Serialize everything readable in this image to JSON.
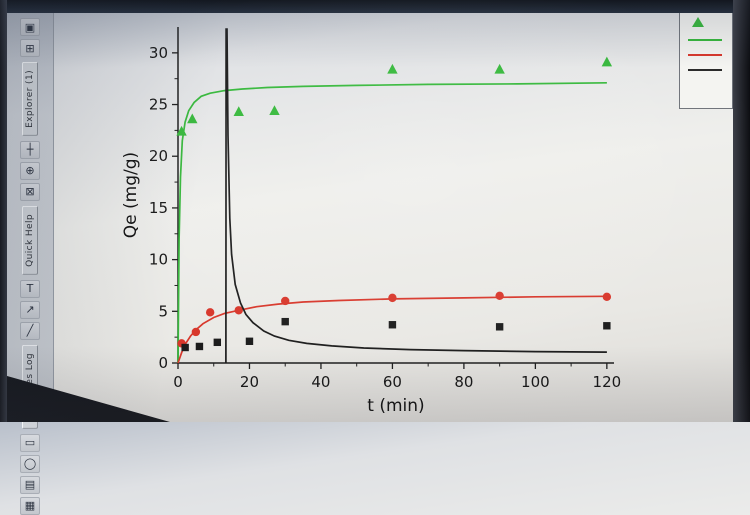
{
  "window": {
    "top_bar_color": "#141a24",
    "bezel_color": "#1b1d22"
  },
  "sidebar": {
    "tabs": [
      "Explorer (1)",
      "Quick Help",
      "Messages Log"
    ],
    "icon_groups": [
      [
        {
          "name": "project-explorer-icon",
          "glyph": "▣"
        },
        {
          "name": "new-window-icon",
          "glyph": "⊞"
        }
      ],
      [
        {
          "name": "crosshair-tool-icon",
          "glyph": "┼"
        },
        {
          "name": "zoom-tool-icon",
          "glyph": "⊕"
        },
        {
          "name": "screen-reader-tool-icon",
          "glyph": "⊠"
        }
      ],
      [
        {
          "name": "text-tool-icon",
          "glyph": "T"
        },
        {
          "name": "arrow-tool-icon",
          "glyph": "↗"
        },
        {
          "name": "line-tool-icon",
          "glyph": "╱"
        }
      ],
      [
        {
          "name": "rectangle-tool-icon",
          "glyph": "▭"
        },
        {
          "name": "ellipse-tool-icon",
          "glyph": "◯"
        },
        {
          "name": "polyline-tool-icon",
          "glyph": "▤"
        },
        {
          "name": "matrix-tool-icon",
          "glyph": "▦"
        }
      ]
    ]
  },
  "legend": {
    "marker_color": "#35b83a",
    "lines": [
      {
        "name": "legend-green-fit-line",
        "color": "#35b83a"
      },
      {
        "name": "legend-red-fit-line",
        "color": "#d8372b"
      },
      {
        "name": "legend-black-fit-line",
        "color": "#2a2a2a"
      }
    ]
  },
  "chart_data": {
    "type": "scatter",
    "title": "",
    "xlabel": "t (min)",
    "ylabel": "Qe (mg/g)",
    "xlim": [
      0,
      122
    ],
    "ylim": [
      0,
      32.5
    ],
    "xticks": [
      0,
      20,
      40,
      60,
      80,
      100,
      120
    ],
    "yticks": [
      0,
      5,
      10,
      15,
      20,
      25,
      30
    ],
    "grid": false,
    "legend_position": "outside-top-right",
    "series": [
      {
        "name": "green",
        "marker": "triangle",
        "color": "#35b83a",
        "points": [
          [
            1,
            22.4
          ],
          [
            4,
            23.6
          ],
          [
            17,
            24.3
          ],
          [
            27,
            24.4
          ],
          [
            60,
            28.4
          ],
          [
            90,
            28.4
          ],
          [
            120,
            29.1
          ]
        ],
        "curve": [
          [
            0,
            0
          ],
          [
            0.3,
            12
          ],
          [
            0.7,
            18
          ],
          [
            1.2,
            21.5
          ],
          [
            2,
            23.3
          ],
          [
            3,
            24.4
          ],
          [
            4.5,
            25.2
          ],
          [
            6.5,
            25.8
          ],
          [
            9,
            26.1
          ],
          [
            13,
            26.35
          ],
          [
            18,
            26.5
          ],
          [
            25,
            26.65
          ],
          [
            35,
            26.75
          ],
          [
            50,
            26.85
          ],
          [
            70,
            26.95
          ],
          [
            95,
            27.0
          ],
          [
            120,
            27.1
          ]
        ]
      },
      {
        "name": "red",
        "marker": "circle",
        "color": "#d8372b",
        "points": [
          [
            1,
            1.9
          ],
          [
            5,
            3.0
          ],
          [
            9,
            4.9
          ],
          [
            17,
            5.1
          ],
          [
            30,
            6.0
          ],
          [
            60,
            6.3
          ],
          [
            90,
            6.5
          ],
          [
            120,
            6.4
          ]
        ],
        "curve": [
          [
            0,
            0
          ],
          [
            1,
            1.0
          ],
          [
            2,
            1.8
          ],
          [
            3.5,
            2.6
          ],
          [
            5,
            3.2
          ],
          [
            7,
            3.8
          ],
          [
            10,
            4.4
          ],
          [
            13,
            4.8
          ],
          [
            17,
            5.1
          ],
          [
            22,
            5.45
          ],
          [
            28,
            5.7
          ],
          [
            35,
            5.9
          ],
          [
            45,
            6.05
          ],
          [
            60,
            6.2
          ],
          [
            80,
            6.3
          ],
          [
            100,
            6.4
          ],
          [
            120,
            6.45
          ]
        ]
      },
      {
        "name": "black",
        "marker": "square",
        "color": "#1c1c1c",
        "points": [
          [
            2,
            1.5
          ],
          [
            6,
            1.6
          ],
          [
            11,
            2.0
          ],
          [
            20,
            2.1
          ],
          [
            30,
            4.0
          ],
          [
            60,
            3.7
          ],
          [
            90,
            3.5
          ],
          [
            120,
            3.6
          ]
        ],
        "curve": [
          [
            13.4,
            0
          ],
          [
            13.45,
            32.3
          ],
          [
            13.7,
            32.3
          ],
          [
            14,
            22
          ],
          [
            14.5,
            14
          ],
          [
            15,
            10.5
          ],
          [
            16,
            7.6
          ],
          [
            17.5,
            5.8
          ],
          [
            19,
            4.7
          ],
          [
            21,
            3.9
          ],
          [
            24,
            3.1
          ],
          [
            27,
            2.6
          ],
          [
            31,
            2.2
          ],
          [
            36,
            1.9
          ],
          [
            43,
            1.65
          ],
          [
            52,
            1.45
          ],
          [
            65,
            1.3
          ],
          [
            80,
            1.2
          ],
          [
            100,
            1.1
          ],
          [
            120,
            1.05
          ]
        ]
      }
    ]
  }
}
